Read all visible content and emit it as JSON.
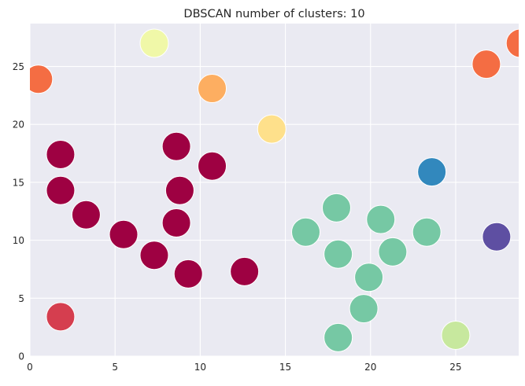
{
  "chart_data": {
    "type": "scatter",
    "title": "DBSCAN number of clusters: 10",
    "xlabel": "",
    "ylabel": "",
    "xlim": [
      0,
      28.7
    ],
    "ylim": [
      0,
      28.7
    ],
    "xticks": [
      0,
      5,
      10,
      15,
      20,
      25
    ],
    "xtick_labels": [
      "0",
      "5",
      "10",
      "15",
      "20",
      "25"
    ],
    "yticks": [
      0,
      5,
      10,
      15,
      20,
      25
    ],
    "ytick_labels": [
      "0",
      "5",
      "10",
      "15",
      "20",
      "25"
    ],
    "grid": true,
    "legend": "none",
    "colors": {
      "background": "#eaeaf2",
      "grid": "#ffffff",
      "text": "#262626"
    },
    "clusters": [
      {
        "color": "#9e0142",
        "points": [
          [
            1.8,
            17.4
          ],
          [
            1.8,
            14.3
          ],
          [
            3.3,
            12.2
          ],
          [
            5.5,
            10.5
          ],
          [
            7.3,
            8.7
          ],
          [
            8.6,
            18.1
          ],
          [
            8.8,
            14.3
          ],
          [
            8.6,
            11.5
          ],
          [
            9.3,
            7.1
          ],
          [
            10.7,
            16.4
          ],
          [
            12.6,
            7.3
          ]
        ]
      },
      {
        "color": "#d53e4f",
        "points": [
          [
            1.8,
            3.4
          ]
        ]
      },
      {
        "color": "#f46d43",
        "points": [
          [
            0.5,
            23.9
          ],
          [
            26.8,
            25.2
          ],
          [
            28.8,
            27.0
          ]
        ]
      },
      {
        "color": "#fdae61",
        "points": [
          [
            10.7,
            23.1
          ]
        ]
      },
      {
        "color": "#fee08b",
        "points": [
          [
            14.2,
            19.6
          ]
        ]
      },
      {
        "color": "#f0f8a8",
        "points": [
          [
            7.3,
            27.0
          ]
        ]
      },
      {
        "color": "#c7e89e",
        "points": [
          [
            25.0,
            1.8
          ]
        ]
      },
      {
        "color": "#76c8a4",
        "points": [
          [
            16.2,
            10.7
          ],
          [
            18.0,
            12.8
          ],
          [
            18.1,
            8.8
          ],
          [
            18.1,
            1.6
          ],
          [
            19.6,
            4.1
          ],
          [
            19.9,
            6.8
          ],
          [
            20.6,
            11.8
          ],
          [
            21.3,
            9.0
          ],
          [
            23.3,
            10.7
          ]
        ]
      },
      {
        "color": "#3288bd",
        "points": [
          [
            23.6,
            15.9
          ]
        ]
      },
      {
        "color": "#5e4fa2",
        "points": [
          [
            27.4,
            10.3
          ]
        ]
      }
    ]
  }
}
